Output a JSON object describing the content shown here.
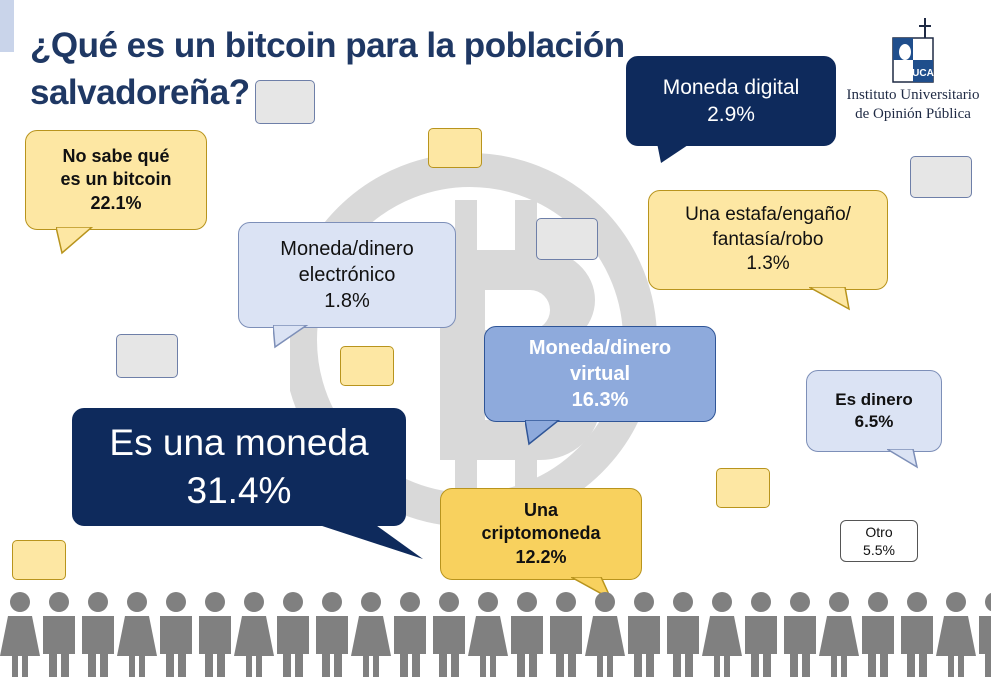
{
  "title": {
    "line1": "¿Qué es un bitcoin para la población",
    "line2": "salvadoreña?"
  },
  "logo": {
    "line1": "Instituto Universitario",
    "line2": "de Opinión Pública",
    "mark": "UCA"
  },
  "chart_data": {
    "type": "infographic-bubbles",
    "title": "¿Qué es un bitcoin para la población salvadoreña?",
    "categories": [
      "Es una moneda",
      "No sabe qué es un bitcoin",
      "Moneda/dinero virtual",
      "Una criptomoneda",
      "Es dinero",
      "Otro",
      "Moneda digital",
      "Moneda/dinero electrónico",
      "Una estafa/engaño/fantasía/robo"
    ],
    "values": [
      31.4,
      22.1,
      16.3,
      12.2,
      6.5,
      5.5,
      2.9,
      1.8,
      1.3
    ],
    "unit": "%"
  },
  "bubbles": {
    "moneda": {
      "l1": "Es una moneda",
      "v": "31.4%"
    },
    "nosabe": {
      "l1": "No sabe qué",
      "l2": "es un bitcoin",
      "v": "22.1%"
    },
    "virtual": {
      "l1": "Moneda/dinero",
      "l2": "virtual",
      "v": "16.3%"
    },
    "cripto": {
      "l1": "Una",
      "l2": "criptomoneda",
      "v": "12.2%"
    },
    "dinero": {
      "l1": "Es dinero",
      "v": "6.5%"
    },
    "otro": {
      "l1": "Otro",
      "v": "5.5%"
    },
    "digital": {
      "l1": "Moneda digital",
      "v": "2.9%"
    },
    "electronico": {
      "l1": "Moneda/dinero",
      "l2": "electrónico",
      "v": "1.8%"
    },
    "estafa": {
      "l1": "Una estafa/engaño/",
      "l2": "fantasía/robo",
      "v": "1.3%"
    }
  },
  "colors": {
    "navy": "#0e2a5c",
    "light": "#dbe3f4",
    "yellow": "#fde7a3",
    "mid": "#8eaadc",
    "gold": "#f8d15e",
    "people": "#808080"
  }
}
